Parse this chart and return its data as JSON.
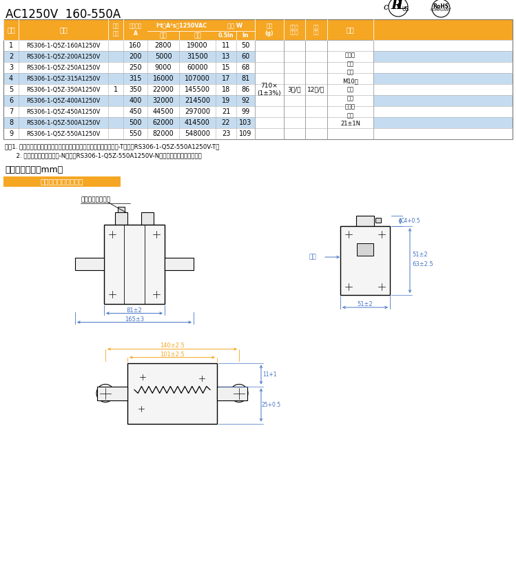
{
  "title": "AC1250V  160-550A",
  "header_bg": "#F5A623",
  "header_text_color": "#FFFFFF",
  "alt_row_bg": "#C5DCF0",
  "normal_row_bg": "#FFFFFF",
  "border_color": "#888888",
  "rows": [
    [
      1,
      "RS306-1-Q5Z-160A1250V",
      "",
      "160",
      "2800",
      "19000",
      "11",
      "50"
    ],
    [
      2,
      "RS306-1-Q5Z-200A1250V",
      "",
      "200",
      "5000",
      "31500",
      "13",
      "60"
    ],
    [
      3,
      "RS306-1-Q5Z-250A1250V",
      "",
      "250",
      "9000",
      "60000",
      "15",
      "68"
    ],
    [
      4,
      "RS306-1-Q5Z-315A1250V",
      "",
      "315",
      "16000",
      "107000",
      "17",
      "81"
    ],
    [
      5,
      "RS306-1-Q5Z-350A1250V",
      "1",
      "350",
      "22000",
      "145500",
      "18",
      "86"
    ],
    [
      6,
      "RS306-1-Q5Z-400A1250V",
      "",
      "400",
      "32000",
      "214500",
      "19",
      "92"
    ],
    [
      7,
      "RS306-1-Q5Z-450A1250V",
      "",
      "450",
      "44500",
      "297000",
      "21",
      "99"
    ],
    [
      8,
      "RS306-1-Q5Z-500A1250V",
      "",
      "500",
      "62000",
      "414500",
      "22",
      "103"
    ],
    [
      9,
      "RS306-1-Q5Z-550A1250V",
      "",
      "550",
      "82000",
      "548000",
      "23",
      "109"
    ]
  ],
  "highlight_rows": [
    1,
    3,
    5,
    7
  ],
  "note_line1": "注：1. 默认基座指示，如需端部（盖板上安装）可视指示器，型号后加-T，例：RS306-1-Q5Z-550A1250V-T；",
  "note_line2": "      2. 如无需指示，型号后加-N，例：RS306-1-Q5Z-550A1250V-N（无可视指示器与基座）；",
  "section_title": "产品外形尺寸（mm）",
  "subsection_title": "燘断件外形及安装尺寸",
  "subsection_bg": "#F5A623",
  "dim_color": "#4472C4",
  "orange_color": "#F5A623",
  "weight_text": "710×\n(1±3%)",
  "min_pack": "3只/盒",
  "pack_qty": "12只/筱",
  "remarks": "推荐安\n装方\n式：\nM10螺\n栓安\n装；\n推荐扭\n矩：\n21±1N",
  "label_base": "基座（可加开关）",
  "label_terminal": "端部"
}
